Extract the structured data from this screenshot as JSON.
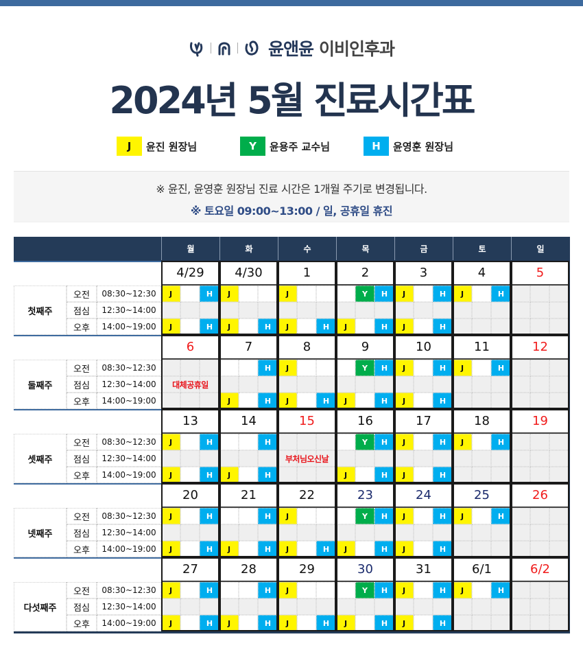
{
  "logo": {
    "brand": "윤앤윤",
    "dept": "이비인후과"
  },
  "title": "2024년 5월 진료시간표",
  "legend": [
    {
      "code": "J",
      "label": "윤진 원장님",
      "color": "#fff500"
    },
    {
      "code": "Y",
      "label": "윤용주 교수님",
      "color": "#00ad4b"
    },
    {
      "code": "H",
      "label": "윤영훈 원장님",
      "color": "#00aeef"
    }
  ],
  "notes": [
    "※ 윤진, 윤영훈 원장님 진료 시간은 1개월 주기로 변경됩니다.",
    "※ 토요일  09:00~13:00 / 일, 공휴일 휴진"
  ],
  "colors": {
    "header": "#243b58",
    "red": "#f01b1b",
    "navy": "#1a2a6c",
    "gray": "#efefef"
  },
  "weekdays": [
    "월",
    "화",
    "수",
    "목",
    "금",
    "토",
    "일"
  ],
  "rows": [
    {
      "label": "오전",
      "time": "08:30~12:30"
    },
    {
      "label": "점심",
      "time": "12:30~14:00"
    },
    {
      "label": "오후",
      "time": "14:00~19:00"
    }
  ],
  "weeks": [
    {
      "label": "첫째주",
      "days": [
        {
          "date": "4/29",
          "tone": "black",
          "am": "J.H",
          "pm": "J.H"
        },
        {
          "date": "4/30",
          "tone": "black",
          "am": "J..",
          "pm": "J.H"
        },
        {
          "date": "1",
          "tone": "black",
          "am": "J..",
          "pm": "J.H"
        },
        {
          "date": "2",
          "tone": "black",
          "am": ".YH",
          "pm": "J.H"
        },
        {
          "date": "3",
          "tone": "black",
          "am": "J.H",
          "pm": "J.H"
        },
        {
          "date": "4",
          "tone": "black",
          "am": "J.H",
          "pm": "---"
        },
        {
          "date": "5",
          "tone": "red",
          "am": "---",
          "pm": "---"
        }
      ]
    },
    {
      "label": "둘째주",
      "days": [
        {
          "date": "6",
          "tone": "red",
          "am": "---",
          "pm": "---",
          "holiday": "대체공휴일"
        },
        {
          "date": "7",
          "tone": "black",
          "am": "..H",
          "pm": "J.H"
        },
        {
          "date": "8",
          "tone": "black",
          "am": "J..",
          "pm": "J.H"
        },
        {
          "date": "9",
          "tone": "black",
          "am": ".YH",
          "pm": "J.H"
        },
        {
          "date": "10",
          "tone": "black",
          "am": "J.H",
          "pm": "J.H"
        },
        {
          "date": "11",
          "tone": "black",
          "am": "J.H",
          "pm": "---"
        },
        {
          "date": "12",
          "tone": "red",
          "am": "---",
          "pm": "---"
        }
      ]
    },
    {
      "label": "셋째주",
      "days": [
        {
          "date": "13",
          "tone": "black",
          "am": "J.H",
          "pm": "J.H"
        },
        {
          "date": "14",
          "tone": "black",
          "am": "..H",
          "pm": "J.H"
        },
        {
          "date": "15",
          "tone": "red",
          "am": "---",
          "pm": "---",
          "holiday": "부처님오신날"
        },
        {
          "date": "16",
          "tone": "black",
          "am": ".YH",
          "pm": "J.H"
        },
        {
          "date": "17",
          "tone": "black",
          "am": "J.H",
          "pm": "J.H"
        },
        {
          "date": "18",
          "tone": "black",
          "am": "J.H",
          "pm": "---"
        },
        {
          "date": "19",
          "tone": "red",
          "am": "---",
          "pm": "---"
        }
      ]
    },
    {
      "label": "넷째주",
      "days": [
        {
          "date": "20",
          "tone": "black",
          "am": "J.H",
          "pm": "J.H"
        },
        {
          "date": "21",
          "tone": "black",
          "am": "..H",
          "pm": "J.H"
        },
        {
          "date": "22",
          "tone": "black",
          "am": "J..",
          "pm": "J.H"
        },
        {
          "date": "23",
          "tone": "navy",
          "am": ".YH",
          "pm": "J.H"
        },
        {
          "date": "24",
          "tone": "navy",
          "am": "J.H",
          "pm": "J.H"
        },
        {
          "date": "25",
          "tone": "navy",
          "am": "J.H",
          "pm": "---"
        },
        {
          "date": "26",
          "tone": "red",
          "am": "---",
          "pm": "---"
        }
      ]
    },
    {
      "label": "다섯째주",
      "days": [
        {
          "date": "27",
          "tone": "black",
          "am": "J.H",
          "pm": "J.H"
        },
        {
          "date": "28",
          "tone": "black",
          "am": "..H",
          "pm": "J.H"
        },
        {
          "date": "29",
          "tone": "black",
          "am": "J..",
          "pm": "J.H"
        },
        {
          "date": "30",
          "tone": "navy",
          "am": ".YH",
          "pm": "J.H"
        },
        {
          "date": "31",
          "tone": "black",
          "am": "J.H",
          "pm": "J.H"
        },
        {
          "date": "6/1",
          "tone": "black",
          "am": "J.H",
          "pm": "---"
        },
        {
          "date": "6/2",
          "tone": "red",
          "am": "---",
          "pm": "---"
        }
      ]
    }
  ]
}
